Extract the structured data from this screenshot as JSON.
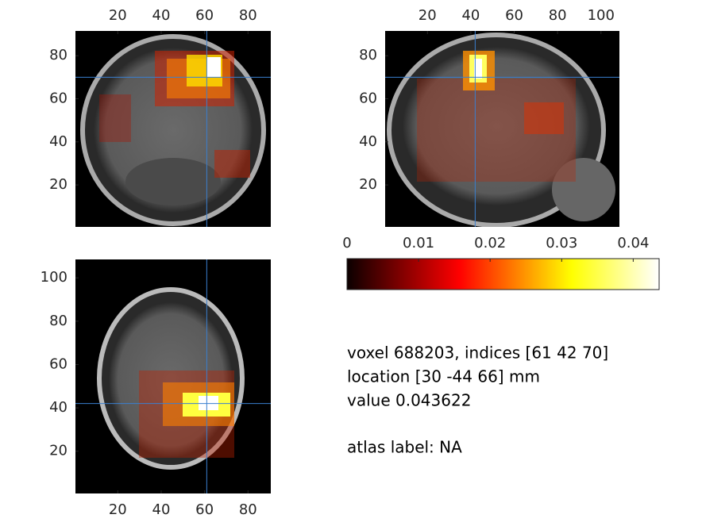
{
  "panels": [
    {
      "xlim": [
        0.5,
        90.5
      ],
      "ylim": [
        0.5,
        91.5
      ],
      "xticks": [
        20,
        40,
        60,
        80
      ],
      "yticks": [
        20,
        40,
        60,
        80
      ],
      "crosshair": [
        61,
        70
      ]
    },
    {
      "xlim": [
        0.5,
        108.5
      ],
      "ylim": [
        0.5,
        91.5
      ],
      "xticks": [
        20,
        40,
        60,
        80,
        100
      ],
      "yticks": [
        20,
        40,
        60,
        80
      ],
      "crosshair": [
        42,
        70
      ]
    },
    {
      "xlim": [
        0.5,
        90.5
      ],
      "ylim": [
        0.5,
        108.5
      ],
      "xticks": [
        20,
        40,
        60,
        80
      ],
      "yticks": [
        20,
        40,
        60,
        80,
        100
      ],
      "crosshair": [
        61,
        42
      ]
    }
  ],
  "colorbar": {
    "clim": [
      0,
      0.043622
    ],
    "ticks": [
      0,
      0.01,
      0.02,
      0.03,
      0.04
    ]
  },
  "info": [
    "voxel 688203, indices [61 42 70]",
    "location [30 -44 66] mm",
    "value 0.043622",
    "atlas label: NA"
  ]
}
